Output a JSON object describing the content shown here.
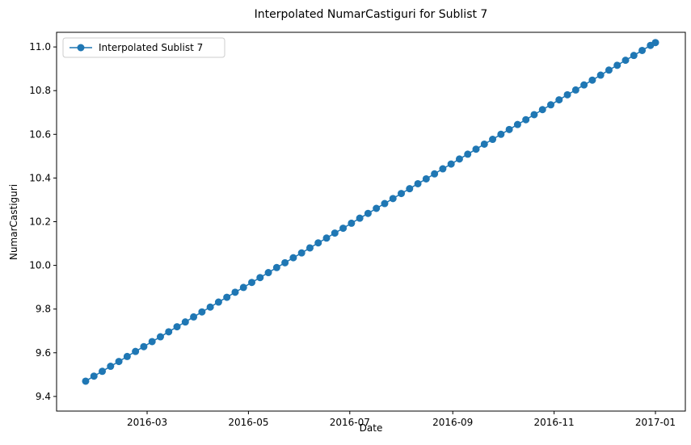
{
  "chart_data": {
    "type": "line",
    "title": "Interpolated NumarCastiguri for Sublist 7",
    "x_label": "Date",
    "y_label": "NumarCastiguri",
    "x": [
      16824,
      16829,
      16834,
      16839,
      16844,
      16849,
      16854,
      16859,
      16864,
      16869,
      16874,
      16879,
      16884,
      16889,
      16894,
      16899,
      16904,
      16909,
      16914,
      16919,
      16924,
      16929,
      16934,
      16939,
      16944,
      16949,
      16954,
      16959,
      16964,
      16969,
      16974,
      16979,
      16984,
      16989,
      16994,
      16999,
      17004,
      17009,
      17014,
      17019,
      17024,
      17029,
      17034,
      17039,
      17044,
      17049,
      17054,
      17059,
      17064,
      17069,
      17074,
      17079,
      17084,
      17089,
      17094,
      17099,
      17104,
      17109,
      17114,
      17119,
      17124,
      17129,
      17134,
      17139,
      17144,
      17149,
      17154,
      17159,
      17164,
      17167
    ],
    "series": [
      {
        "name": "Interpolated Sublist 7",
        "color": "#1f77b4",
        "marker": "o",
        "values": [
          9.47,
          9.493,
          9.515,
          9.538,
          9.56,
          9.583,
          9.606,
          9.628,
          9.651,
          9.673,
          9.696,
          9.719,
          9.741,
          9.764,
          9.787,
          9.809,
          9.832,
          9.854,
          9.877,
          9.899,
          9.922,
          9.944,
          9.967,
          9.99,
          10.012,
          10.035,
          10.057,
          10.08,
          10.103,
          10.125,
          10.148,
          10.17,
          10.193,
          10.216,
          10.238,
          10.261,
          10.283,
          10.306,
          10.329,
          10.351,
          10.374,
          10.396,
          10.419,
          10.442,
          10.464,
          10.487,
          10.509,
          10.532,
          10.555,
          10.577,
          10.6,
          10.622,
          10.645,
          10.667,
          10.69,
          10.713,
          10.735,
          10.758,
          10.781,
          10.803,
          10.826,
          10.848,
          10.871,
          10.894,
          10.916,
          10.939,
          10.961,
          10.984,
          11.007,
          11.02
        ]
      }
    ],
    "xlim": [
      16806.5,
      17185
    ],
    "xticks": [
      {
        "value": 16861,
        "label": "2016-03"
      },
      {
        "value": 16922,
        "label": "2016-05"
      },
      {
        "value": 16983,
        "label": "2016-07"
      },
      {
        "value": 17045,
        "label": "2016-09"
      },
      {
        "value": 17106,
        "label": "2016-11"
      },
      {
        "value": 17167,
        "label": "2017-01"
      }
    ],
    "ylim": [
      9.333,
      11.067
    ],
    "yticks": [
      9.4,
      9.6,
      9.8,
      {
        "value": 10,
        "label": "10.0"
      },
      10.2,
      10.4,
      10.6,
      10.8,
      {
        "value": 11,
        "label": "11.0"
      }
    ],
    "grid": false,
    "legend": "upper left"
  }
}
